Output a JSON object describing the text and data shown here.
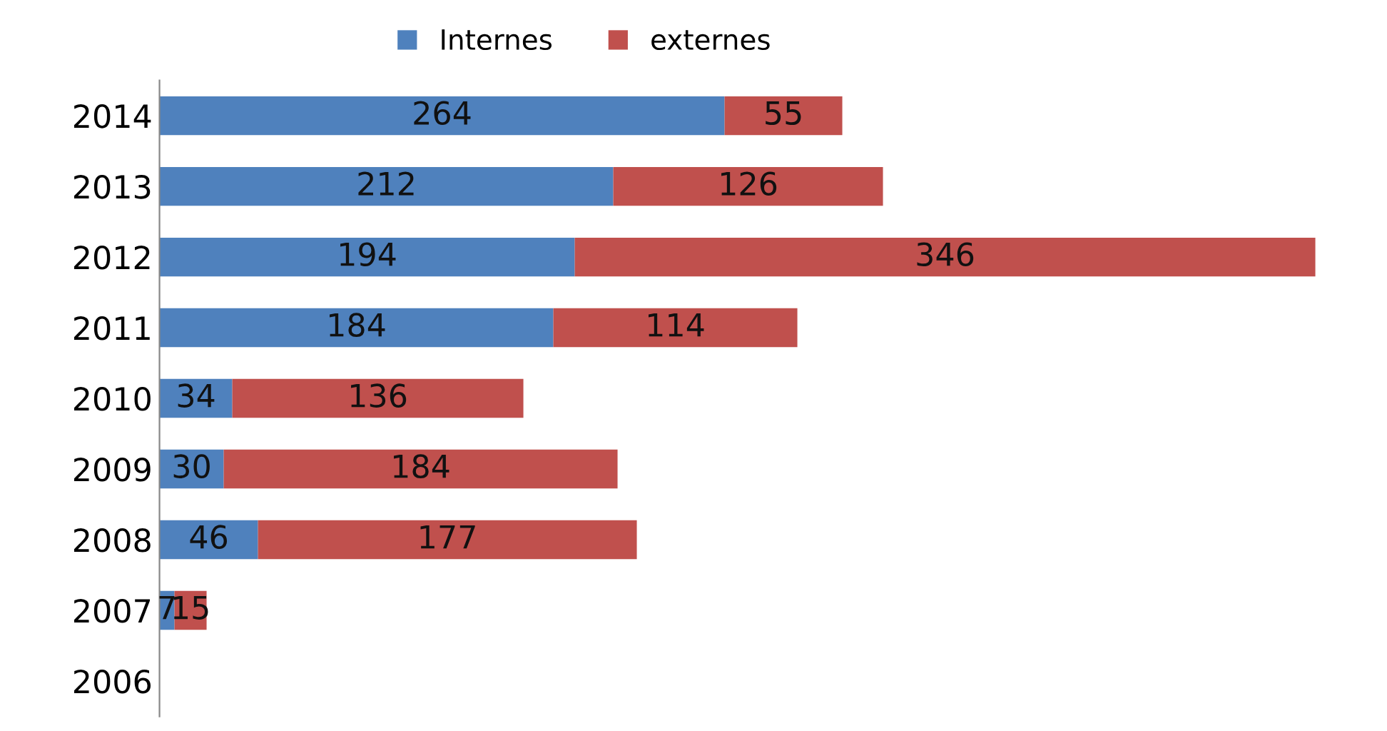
{
  "chart_data": {
    "type": "bar",
    "orientation": "horizontal",
    "stacked": true,
    "data_labels": true,
    "legend": "top",
    "tick_labels": "y",
    "grid": false,
    "categories": [
      "2014",
      "2013",
      "2012",
      "2011",
      "2010",
      "2009",
      "2008",
      "2007",
      "2006"
    ],
    "series": [
      {
        "name": "Internes",
        "color": "#4f81bd",
        "values": [
          264,
          212,
          194,
          184,
          34,
          30,
          46,
          7,
          null
        ]
      },
      {
        "name": "externes",
        "color": "#c0504d",
        "values": [
          55,
          126,
          346,
          114,
          136,
          184,
          177,
          15,
          null
        ]
      }
    ]
  }
}
